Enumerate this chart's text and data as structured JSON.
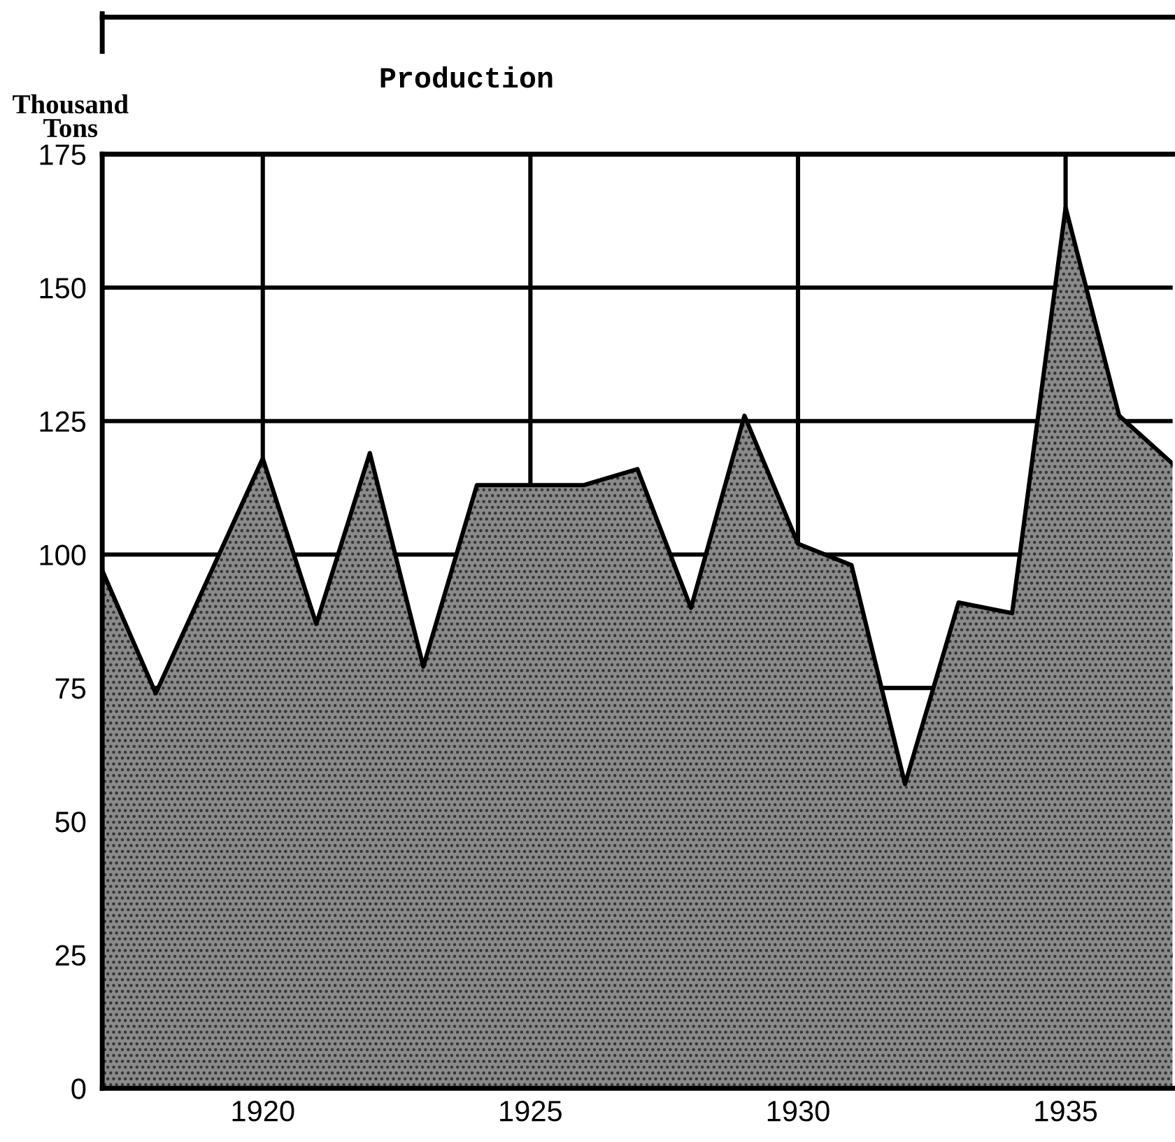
{
  "chart_data": {
    "type": "area",
    "title": "Production",
    "ylabel": "Thousand Tons",
    "x": [
      1917,
      1918,
      1919,
      1920,
      1921,
      1922,
      1923,
      1924,
      1925,
      1926,
      1927,
      1928,
      1929,
      1930,
      1931,
      1932,
      1933,
      1934,
      1935,
      1936,
      1937
    ],
    "series": [
      {
        "color": "#8a8a8a",
        "values": [
          97,
          74,
          96,
          118,
          87,
          119,
          79,
          113,
          113,
          113,
          116,
          90,
          126,
          102,
          98,
          57,
          91,
          89,
          165,
          126,
          117
        ]
      }
    ],
    "xlim": [
      1917,
      1937
    ],
    "xticks": [
      {
        "value": 1918,
        "label": null
      },
      {
        "value": 1919,
        "label": null
      },
      1920,
      {
        "value": 1921,
        "label": null
      },
      {
        "value": 1922,
        "label": null
      },
      {
        "value": 1923,
        "label": null
      },
      {
        "value": 1924,
        "label": null
      },
      1925,
      {
        "value": 1926,
        "label": null
      },
      {
        "value": 1927,
        "label": null
      },
      {
        "value": 1928,
        "label": null
      },
      {
        "value": 1929,
        "label": null
      },
      1930,
      {
        "value": 1931,
        "label": null
      },
      {
        "value": 1932,
        "label": null
      },
      {
        "value": 1933,
        "label": null
      },
      {
        "value": 1934,
        "label": null
      },
      1935,
      {
        "value": 1936,
        "label": null
      }
    ],
    "ylim": [
      0,
      175
    ],
    "yticks": [
      0,
      25,
      50,
      75,
      100,
      125,
      150,
      175
    ],
    "grid": true,
    "legend": false
  }
}
